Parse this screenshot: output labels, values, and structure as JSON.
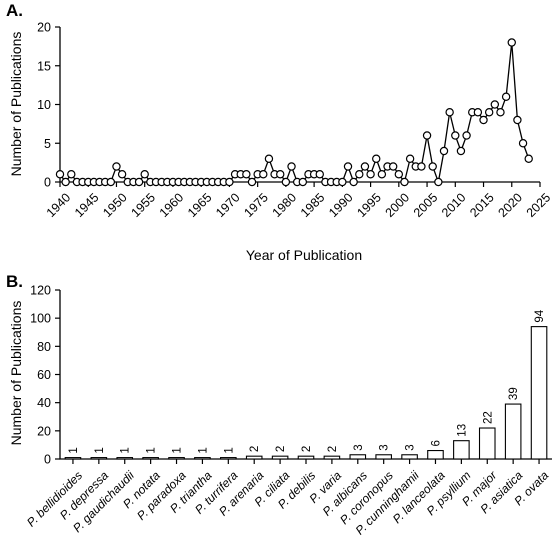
{
  "chart_data": [
    {
      "panel": "A.",
      "type": "line",
      "xlabel": "Year of Publication",
      "ylabel": "Number of Publications",
      "xlim": [
        1940,
        2025
      ],
      "ylim": [
        0,
        20
      ],
      "xticks": [
        1940,
        1945,
        1950,
        1955,
        1960,
        1965,
        1970,
        1975,
        1980,
        1985,
        1990,
        1995,
        2000,
        2005,
        2010,
        2015,
        2020,
        2025
      ],
      "yticks": [
        0,
        5,
        10,
        15,
        20
      ],
      "grid": false,
      "marker": "open-circle",
      "x": [
        1940,
        1941,
        1942,
        1943,
        1944,
        1945,
        1946,
        1947,
        1948,
        1949,
        1950,
        1951,
        1952,
        1953,
        1954,
        1955,
        1956,
        1957,
        1958,
        1959,
        1960,
        1961,
        1962,
        1963,
        1964,
        1965,
        1966,
        1967,
        1968,
        1969,
        1970,
        1971,
        1972,
        1973,
        1974,
        1975,
        1976,
        1977,
        1978,
        1979,
        1980,
        1981,
        1982,
        1983,
        1984,
        1985,
        1986,
        1987,
        1988,
        1989,
        1990,
        1991,
        1992,
        1993,
        1994,
        1995,
        1996,
        1997,
        1998,
        1999,
        2000,
        2001,
        2002,
        2003,
        2004,
        2005,
        2006,
        2007,
        2008,
        2009,
        2010,
        2011,
        2012,
        2013,
        2014,
        2015,
        2016,
        2017,
        2018,
        2019,
        2020,
        2021,
        2022,
        2023
      ],
      "y": [
        1,
        0,
        1,
        0,
        0,
        0,
        0,
        0,
        0,
        0,
        2,
        1,
        0,
        0,
        0,
        1,
        0,
        0,
        0,
        0,
        0,
        0,
        0,
        0,
        0,
        0,
        0,
        0,
        0,
        0,
        0,
        1,
        1,
        1,
        0,
        1,
        1,
        3,
        1,
        1,
        0,
        2,
        0,
        0,
        1,
        1,
        1,
        0,
        0,
        0,
        0,
        2,
        0,
        1,
        2,
        1,
        3,
        1,
        2,
        2,
        1,
        0,
        3,
        2,
        2,
        6,
        2,
        0,
        4,
        9,
        6,
        4,
        6,
        9,
        9,
        8,
        9,
        10,
        9,
        11,
        18,
        8,
        5,
        3
      ]
    },
    {
      "panel": "B.",
      "type": "bar",
      "xlabel": "",
      "ylabel": "Number of Publications",
      "ylim": [
        0,
        120
      ],
      "yticks": [
        0,
        20,
        40,
        60,
        80,
        100,
        120
      ],
      "grid": false,
      "categories": [
        "P. bellidioides",
        "P. depressa",
        "P. gaudichaudii",
        "P. notata",
        "P. paradoxa",
        "P. triantha",
        "P. turrifera",
        "P. arenaria",
        "P. ciliata",
        "P. debilis",
        "P. varia",
        "P. albicans",
        "P. coronopus",
        "P. cunninghamii",
        "P. lanceolata",
        "P. psyllium",
        "P. major",
        "P. asiatica",
        "P. ovata"
      ],
      "values": [
        1,
        1,
        1,
        1,
        1,
        1,
        1,
        2,
        2,
        2,
        2,
        3,
        3,
        3,
        6,
        13,
        22,
        39,
        94
      ]
    }
  ]
}
